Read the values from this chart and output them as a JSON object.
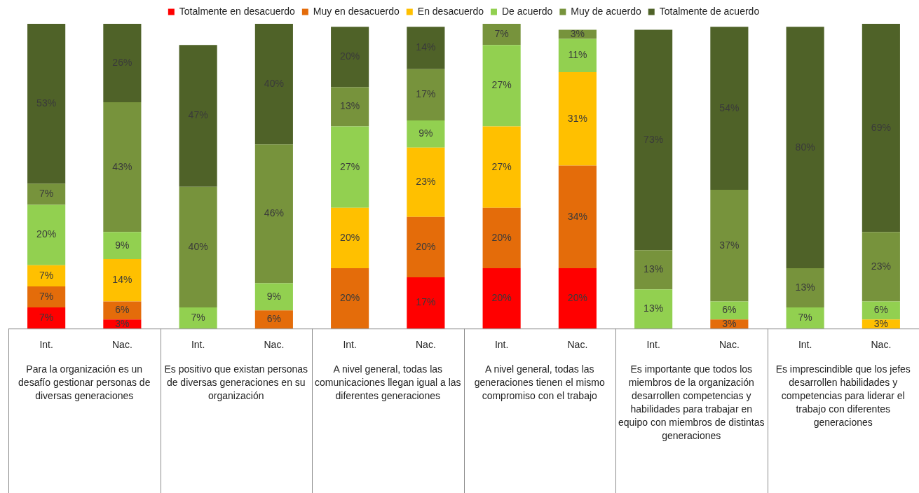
{
  "chart_data": {
    "type": "bar",
    "stacked": true,
    "legend": "top",
    "grid": false,
    "categories": [
      "Int.",
      "Nac.",
      "Int.",
      "Nac.",
      "Int.",
      "Nac.",
      "Int.",
      "Nac.",
      "Int.",
      "Nac.",
      "Int.",
      "Nac."
    ],
    "annotations": [
      "Para la organización es un desafío gestionar personas de diversas generaciones",
      "Es positivo que existan personas de diversas generaciones en su organización",
      "A nivel general, todas las comunicaciones llegan igual a las diferentes generaciones",
      "A nivel general, todas las generaciones tienen el mismo compromiso con el trabajo",
      "Es importante que todos los miembros de la organización desarrollen competencias y habilidades para trabajar en equipo con miembros de distintas generaciones",
      "Es imprescindible que los jefes desarrollen habilidades y competencias para liderar el trabajo con diferentes generaciones"
    ],
    "series": [
      {
        "name": "Totalmente en desacuerdo",
        "color": "#ff0000",
        "values": [
          7,
          3,
          null,
          null,
          null,
          17,
          20,
          20,
          null,
          null,
          null,
          null
        ],
        "value_labels": [
          "7%",
          "3%",
          null,
          null,
          null,
          "17%",
          "20%",
          "20%",
          null,
          null,
          null,
          null
        ]
      },
      {
        "name": "Muy en desacuerdo",
        "color": "#e46c0a",
        "values": [
          7,
          6,
          null,
          6,
          20,
          20,
          20,
          34,
          null,
          3,
          null,
          null
        ],
        "value_labels": [
          "7%",
          "6%",
          null,
          "6%",
          "20%",
          "20%",
          "20%",
          "34%",
          null,
          "3%",
          null,
          null
        ]
      },
      {
        "name": "En desacuerdo",
        "color": "#ffc000",
        "values": [
          7,
          14,
          null,
          null,
          20,
          23,
          27,
          31,
          null,
          null,
          null,
          3
        ],
        "value_labels": [
          "7%",
          "14%",
          null,
          null,
          "20%",
          "23%",
          "27%",
          "31%",
          null,
          null,
          null,
          "3%"
        ]
      },
      {
        "name": "De acuerdo",
        "color": "#92d050",
        "values": [
          20,
          9,
          7,
          9,
          27,
          9,
          27,
          11,
          13,
          6,
          7,
          6
        ],
        "value_labels": [
          "20%",
          "9%",
          "7%",
          "9%",
          "27%",
          "9%",
          "27%",
          "11%",
          "13%",
          "6%",
          "7%",
          "6%"
        ]
      },
      {
        "name": "Muy de acuerdo",
        "color": "#77933c",
        "values": [
          7,
          43,
          40,
          46,
          13,
          17,
          7,
          3,
          13,
          37,
          13,
          23
        ],
        "value_labels": [
          "7%",
          "43%",
          "40%",
          "46%",
          "13%",
          "17%",
          "7%",
          "3%",
          "13%",
          "37%",
          "13%",
          "23%"
        ]
      },
      {
        "name": "Totalmente de acuerdo",
        "color": "#4f6228",
        "values": [
          53,
          26,
          47,
          40,
          20,
          14,
          null,
          null,
          73,
          54,
          80,
          69
        ],
        "value_labels": [
          "53%",
          "26%",
          "47%",
          "40%",
          "20%",
          "14%",
          null,
          null,
          "73%",
          "54%",
          "80%",
          "69%"
        ]
      }
    ]
  }
}
